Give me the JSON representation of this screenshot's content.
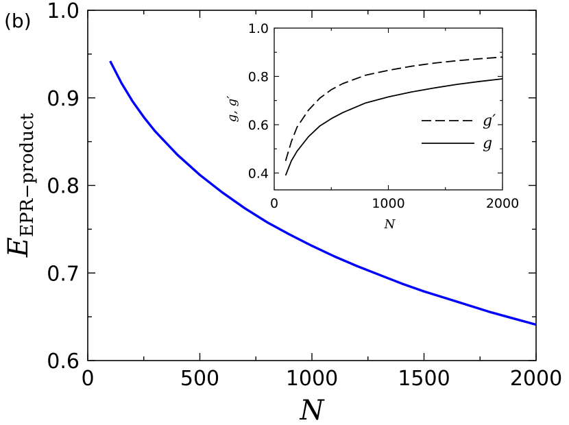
{
  "panel_label": "(b)",
  "chart_data": [
    {
      "type": "line",
      "xlabel": "N",
      "ylabel": {
        "main": "E",
        "subscript": "EPR−product"
      },
      "xlim": [
        0,
        2000
      ],
      "ylim": [
        0.6,
        1.0
      ],
      "xticks": [
        0,
        500,
        1000,
        1500,
        2000
      ],
      "xtick_labels": [
        "0",
        "500",
        "1000",
        "1500",
        "2000"
      ],
      "yticks": [
        0.6,
        0.7,
        0.8,
        0.9,
        1.0
      ],
      "ytick_labels": [
        "0.6",
        "0.7",
        "0.8",
        "0.9",
        "1.0"
      ],
      "legend": null,
      "series": [
        {
          "color": "#0000ff",
          "line_style": "solid",
          "x": [
            100,
            150,
            200,
            250,
            300,
            400,
            500,
            600,
            700,
            800,
            900,
            1000,
            1100,
            1200,
            1300,
            1400,
            1500,
            1600,
            1700,
            1800,
            1900,
            2000
          ],
          "y": [
            0.942,
            0.917,
            0.896,
            0.878,
            0.862,
            0.835,
            0.812,
            0.792,
            0.774,
            0.758,
            0.744,
            0.731,
            0.719,
            0.708,
            0.698,
            0.688,
            0.679,
            0.671,
            0.663,
            0.655,
            0.648,
            0.641
          ]
        }
      ]
    },
    {
      "type": "line",
      "xlabel": "N",
      "ylabel": "g, g′",
      "xlim": [
        0,
        2000
      ],
      "ylim": [
        0.33,
        1.0
      ],
      "xticks": [
        0,
        1000,
        2000
      ],
      "xtick_labels": [
        "0",
        "1000",
        "2000"
      ],
      "yticks": [
        0.4,
        0.6,
        0.8,
        1.0
      ],
      "ytick_labels": [
        "0.4",
        "0.6",
        "0.8",
        "1.0"
      ],
      "legend": "right",
      "series": [
        {
          "name": "g′",
          "color": "#000000",
          "line_style": "dashed",
          "x": [
            100,
            150,
            200,
            300,
            400,
            500,
            600,
            800,
            1000,
            1200,
            1400,
            1600,
            1800,
            2000
          ],
          "y": [
            0.45,
            0.53,
            0.59,
            0.66,
            0.71,
            0.745,
            0.77,
            0.805,
            0.825,
            0.842,
            0.855,
            0.865,
            0.873,
            0.88
          ]
        },
        {
          "name": "g",
          "color": "#000000",
          "line_style": "solid",
          "x": [
            100,
            150,
            200,
            300,
            400,
            500,
            600,
            800,
            1000,
            1200,
            1400,
            1600,
            1800,
            2000
          ],
          "y": [
            0.39,
            0.45,
            0.49,
            0.55,
            0.595,
            0.625,
            0.65,
            0.69,
            0.715,
            0.735,
            0.752,
            0.767,
            0.779,
            0.79
          ]
        }
      ]
    }
  ]
}
